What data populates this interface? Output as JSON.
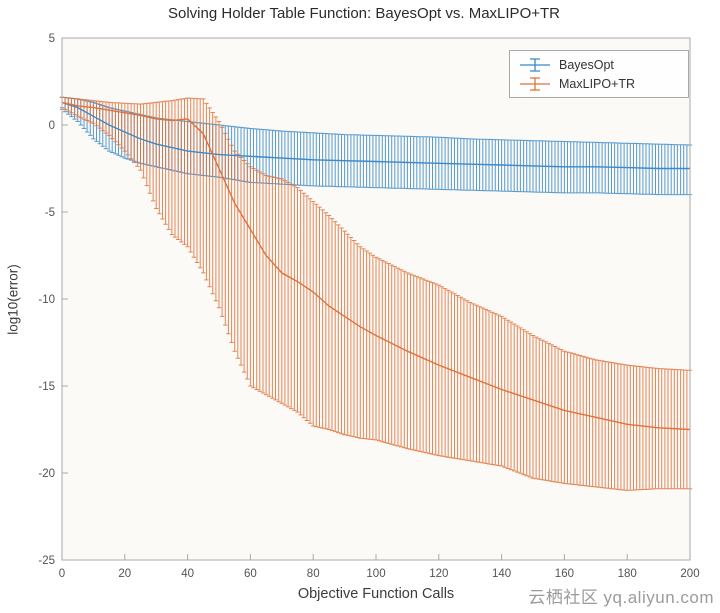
{
  "watermark": "云栖社区 yq.aliyun.com",
  "chart_data": {
    "type": "line",
    "title": "Solving Holder Table Function: BayesOpt vs. MaxLIPO+TR",
    "xlabel": "Objective Function Calls",
    "ylabel": "log10(error)",
    "xlim": [
      0,
      200
    ],
    "ylim": [
      -25,
      5
    ],
    "x_ticks": [
      0,
      20,
      40,
      60,
      80,
      100,
      120,
      140,
      160,
      180,
      200
    ],
    "y_ticks": [
      5,
      0,
      -5,
      -10,
      -15,
      -20,
      -25
    ],
    "grid": false,
    "legend_position": "top-right",
    "points_format": [
      "x",
      "mean",
      "lo",
      "hi"
    ],
    "series": [
      {
        "name": "BayesOpt",
        "color": "#3a89c9",
        "points": [
          [
            0,
            1.3,
            0.9,
            1.6
          ],
          [
            5,
            1.0,
            0.2,
            1.5
          ],
          [
            10,
            0.5,
            -0.8,
            1.3
          ],
          [
            15,
            0.0,
            -1.5,
            1.0
          ],
          [
            20,
            -0.4,
            -1.9,
            0.8
          ],
          [
            25,
            -0.8,
            -2.2,
            0.6
          ],
          [
            30,
            -1.1,
            -2.4,
            0.4
          ],
          [
            35,
            -1.3,
            -2.6,
            0.3
          ],
          [
            40,
            -1.5,
            -2.8,
            0.2
          ],
          [
            45,
            -1.6,
            -2.9,
            0.1
          ],
          [
            50,
            -1.7,
            -3.0,
            0.0
          ],
          [
            55,
            -1.75,
            -3.15,
            -0.1
          ],
          [
            60,
            -1.8,
            -3.3,
            -0.2
          ],
          [
            70,
            -1.9,
            -3.4,
            -0.35
          ],
          [
            80,
            -2.0,
            -3.5,
            -0.45
          ],
          [
            90,
            -2.05,
            -3.55,
            -0.55
          ],
          [
            100,
            -2.1,
            -3.6,
            -0.6
          ],
          [
            110,
            -2.15,
            -3.65,
            -0.65
          ],
          [
            120,
            -2.2,
            -3.7,
            -0.7
          ],
          [
            130,
            -2.25,
            -3.75,
            -0.8
          ],
          [
            140,
            -2.3,
            -3.8,
            -0.85
          ],
          [
            150,
            -2.35,
            -3.85,
            -0.9
          ],
          [
            160,
            -2.4,
            -3.9,
            -0.95
          ],
          [
            170,
            -2.4,
            -3.9,
            -1.0
          ],
          [
            180,
            -2.45,
            -3.95,
            -1.05
          ],
          [
            190,
            -2.5,
            -4.0,
            -1.1
          ],
          [
            200,
            -2.5,
            -4.0,
            -1.15
          ]
        ]
      },
      {
        "name": "MaxLIPO+TR",
        "color": "#e0713b",
        "points": [
          [
            0,
            1.3,
            1.0,
            1.6
          ],
          [
            5,
            1.1,
            0.5,
            1.5
          ],
          [
            10,
            1.0,
            0.1,
            1.4
          ],
          [
            15,
            0.85,
            -0.6,
            1.3
          ],
          [
            20,
            0.7,
            -1.5,
            1.25
          ],
          [
            25,
            0.55,
            -2.6,
            1.2
          ],
          [
            30,
            0.35,
            -4.8,
            1.3
          ],
          [
            35,
            0.25,
            -6.3,
            1.4
          ],
          [
            40,
            0.35,
            -7.0,
            1.55
          ],
          [
            45,
            -0.5,
            -8.5,
            1.5
          ],
          [
            50,
            -2.5,
            -10.5,
            0.2
          ],
          [
            55,
            -4.5,
            -13.0,
            -1.5
          ],
          [
            60,
            -6.0,
            -15.0,
            -2.4
          ],
          [
            65,
            -7.5,
            -15.5,
            -2.9
          ],
          [
            70,
            -8.5,
            -16.0,
            -3.1
          ],
          [
            75,
            -9.0,
            -16.5,
            -3.6
          ],
          [
            80,
            -9.6,
            -17.3,
            -4.4
          ],
          [
            85,
            -10.4,
            -17.5,
            -5.2
          ],
          [
            90,
            -11.0,
            -17.8,
            -6.1
          ],
          [
            95,
            -11.6,
            -18.0,
            -7.0
          ],
          [
            100,
            -12.1,
            -18.1,
            -7.6
          ],
          [
            110,
            -13.0,
            -18.6,
            -8.5
          ],
          [
            120,
            -13.8,
            -19.0,
            -9.2
          ],
          [
            130,
            -14.5,
            -19.3,
            -10.2
          ],
          [
            140,
            -15.2,
            -19.6,
            -11.0
          ],
          [
            150,
            -15.8,
            -20.3,
            -12.1
          ],
          [
            160,
            -16.4,
            -20.6,
            -13.0
          ],
          [
            170,
            -16.8,
            -20.8,
            -13.5
          ],
          [
            180,
            -17.2,
            -21.0,
            -13.8
          ],
          [
            190,
            -17.4,
            -20.9,
            -14.0
          ],
          [
            200,
            -17.5,
            -20.9,
            -14.1
          ]
        ]
      }
    ]
  }
}
